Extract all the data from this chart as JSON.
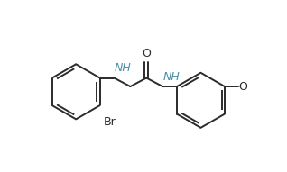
{
  "bg_color": "#ffffff",
  "line_color": "#2b2b2b",
  "nh_color": "#4a90a4",
  "figsize": [
    3.18,
    1.91
  ],
  "dpi": 100,
  "lw": 1.4,
  "font_size": 9.0,
  "ring_r": 0.145,
  "double_off": 0.016,
  "xlim": [
    0.0,
    1.02
  ],
  "ylim": [
    0.08,
    0.98
  ]
}
